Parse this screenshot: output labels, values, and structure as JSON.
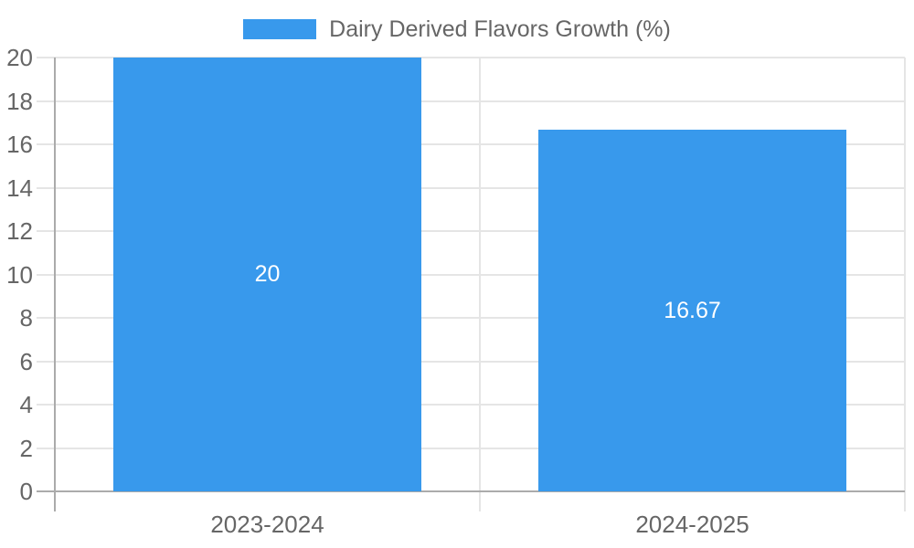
{
  "title": "Dairy Derived Flavors Growth (%)",
  "legend": {
    "label": "Dairy Derived Flavors Growth (%)",
    "swatch_color": "#3899EC",
    "position": "top"
  },
  "colors": {
    "bar": "#3899EC",
    "grid": "#E5E5E5",
    "axis": "#ABABAB",
    "text": "#666666",
    "bar_label": "#FFFFFF",
    "background": "#FFFFFF"
  },
  "chart_data": {
    "type": "bar",
    "categories": [
      "2023-2024",
      "2024-2025"
    ],
    "values": [
      20,
      16.67
    ],
    "value_labels": [
      "20",
      "16.67"
    ],
    "series_name": "Dairy Derived Flavors Growth (%)",
    "title": "",
    "xlabel": "",
    "ylabel": "",
    "ylim": [
      0,
      20
    ],
    "yticks": [
      0,
      2,
      4,
      6,
      8,
      10,
      12,
      14,
      16,
      18,
      20
    ],
    "grid": true,
    "legend_position": "top",
    "bar_label_position": "center"
  }
}
